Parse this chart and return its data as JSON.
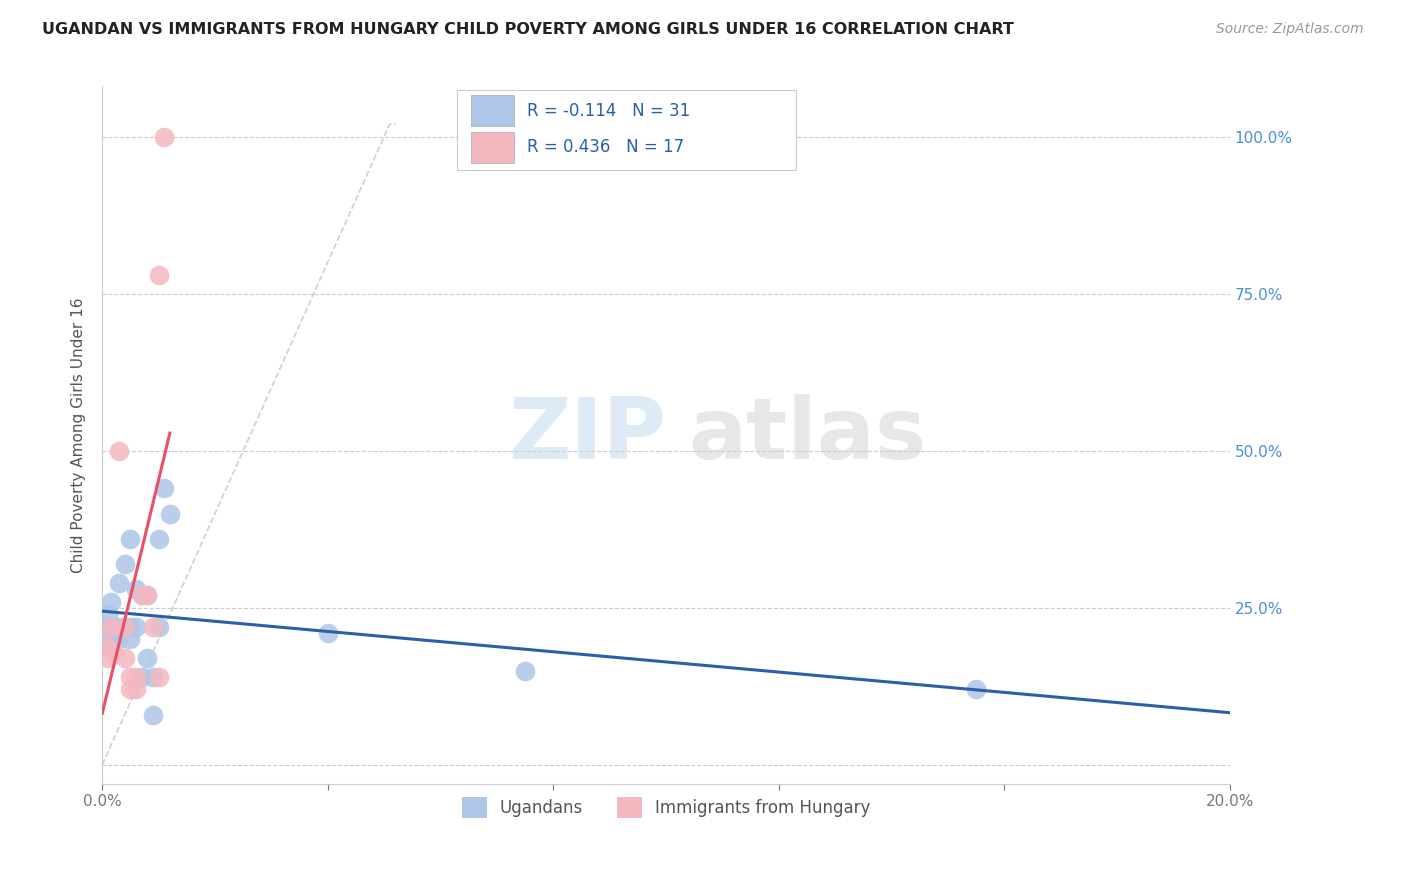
{
  "title": "UGANDAN VS IMMIGRANTS FROM HUNGARY CHILD POVERTY AMONG GIRLS UNDER 16 CORRELATION CHART",
  "source": "Source: ZipAtlas.com",
  "ylabel": "Child Poverty Among Girls Under 16",
  "xlim": [
    0.0,
    0.2
  ],
  "ylim": [
    -0.03,
    1.08
  ],
  "ugandan_R": -0.114,
  "ugandan_N": 31,
  "hungary_R": 0.436,
  "hungary_N": 17,
  "ugandan_color": "#aec6e8",
  "hungary_color": "#f4b8c1",
  "ugandan_trend_color": "#2c5faa",
  "hungary_trend_color": "#e8506a",
  "diagonal_color": "#d0d0d0",
  "legend_R_color": "#2c5faa",
  "ugandan_x": [
    0.0005,
    0.0008,
    0.001,
    0.001,
    0.0015,
    0.0018,
    0.002,
    0.002,
    0.003,
    0.003,
    0.003,
    0.004,
    0.004,
    0.005,
    0.005,
    0.005,
    0.006,
    0.006,
    0.007,
    0.007,
    0.008,
    0.008,
    0.009,
    0.009,
    0.01,
    0.01,
    0.011,
    0.012,
    0.04,
    0.075,
    0.155
  ],
  "ugandan_y": [
    0.22,
    0.2,
    0.24,
    0.19,
    0.26,
    0.22,
    0.22,
    0.2,
    0.29,
    0.22,
    0.2,
    0.32,
    0.22,
    0.36,
    0.22,
    0.2,
    0.28,
    0.22,
    0.27,
    0.14,
    0.27,
    0.17,
    0.14,
    0.08,
    0.36,
    0.22,
    0.44,
    0.4,
    0.21,
    0.15,
    0.12
  ],
  "hungary_x": [
    0.0005,
    0.001,
    0.0015,
    0.002,
    0.003,
    0.004,
    0.004,
    0.005,
    0.005,
    0.006,
    0.006,
    0.007,
    0.008,
    0.009,
    0.01,
    0.01,
    0.011
  ],
  "hungary_y": [
    0.19,
    0.17,
    0.22,
    0.18,
    0.5,
    0.22,
    0.17,
    0.14,
    0.12,
    0.14,
    0.12,
    0.27,
    0.27,
    0.22,
    0.14,
    0.78,
    1.0
  ],
  "ytick_positions": [
    0.0,
    0.25,
    0.5,
    0.75,
    1.0
  ],
  "yticklabels_right": [
    "",
    "25.0%",
    "50.0%",
    "75.0%",
    "100.0%"
  ],
  "xtick_positions": [
    0.0,
    0.04,
    0.08,
    0.12,
    0.16,
    0.2
  ],
  "xticklabels": [
    "0.0%",
    "",
    "",
    "",
    "",
    "20.0%"
  ]
}
